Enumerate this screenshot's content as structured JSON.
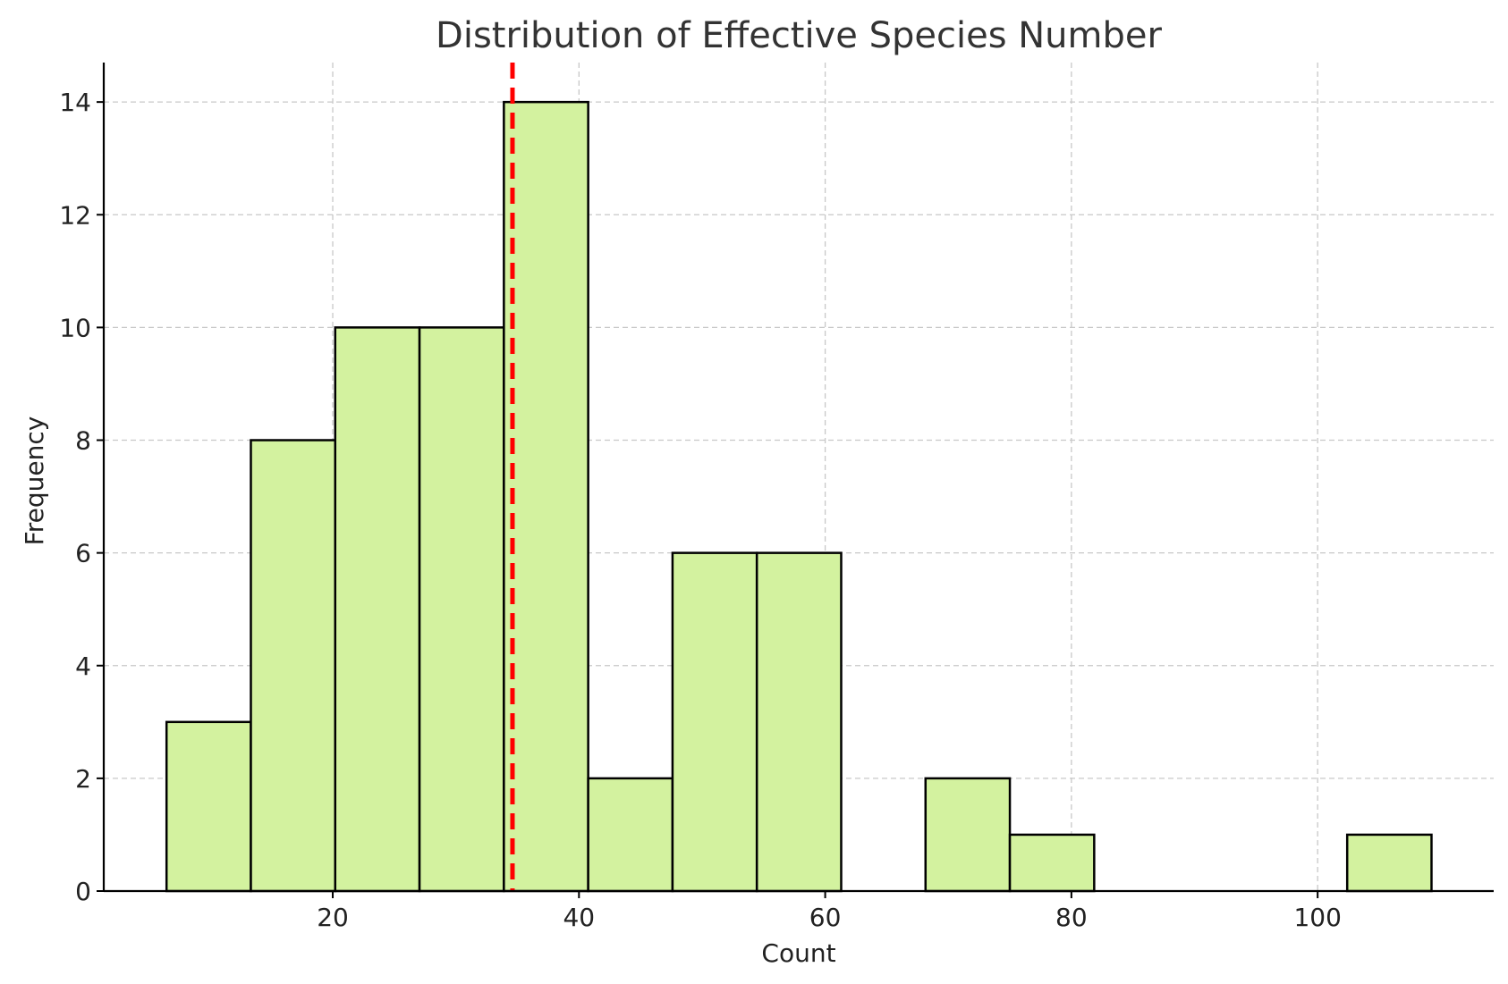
{
  "chart_data": {
    "type": "bar",
    "title": "Distribution of Effective Species Number",
    "xlabel": "Count",
    "ylabel": "Frequency",
    "xlim": [
      1.4,
      114.3
    ],
    "ylim": [
      0,
      14.7
    ],
    "xticks": [
      20,
      40,
      60,
      80,
      100
    ],
    "yticks": [
      0,
      2,
      4,
      6,
      8,
      10,
      12,
      14
    ],
    "grid": true,
    "bar_color": "#d3f29f",
    "edge_color": "#000000",
    "bins": [
      {
        "x0": 6.5,
        "x1": 13.35,
        "count": 3
      },
      {
        "x0": 13.35,
        "x1": 20.2,
        "count": 8
      },
      {
        "x0": 20.2,
        "x1": 27.05,
        "count": 10
      },
      {
        "x0": 27.05,
        "x1": 33.9,
        "count": 10
      },
      {
        "x0": 33.9,
        "x1": 40.75,
        "count": 14
      },
      {
        "x0": 40.75,
        "x1": 47.6,
        "count": 2
      },
      {
        "x0": 47.6,
        "x1": 54.45,
        "count": 6
      },
      {
        "x0": 54.45,
        "x1": 61.3,
        "count": 6
      },
      {
        "x0": 61.3,
        "x1": 68.15,
        "count": 0
      },
      {
        "x0": 68.15,
        "x1": 75.0,
        "count": 2
      },
      {
        "x0": 75.0,
        "x1": 81.85,
        "count": 1
      },
      {
        "x0": 81.85,
        "x1": 88.7,
        "count": 0
      },
      {
        "x0": 88.7,
        "x1": 95.55,
        "count": 0
      },
      {
        "x0": 95.55,
        "x1": 102.4,
        "count": 0
      },
      {
        "x0": 102.4,
        "x1": 109.25,
        "count": 1
      }
    ],
    "reference_line": {
      "x": 34.6,
      "color": "#ff0000",
      "style": "dashed"
    }
  }
}
